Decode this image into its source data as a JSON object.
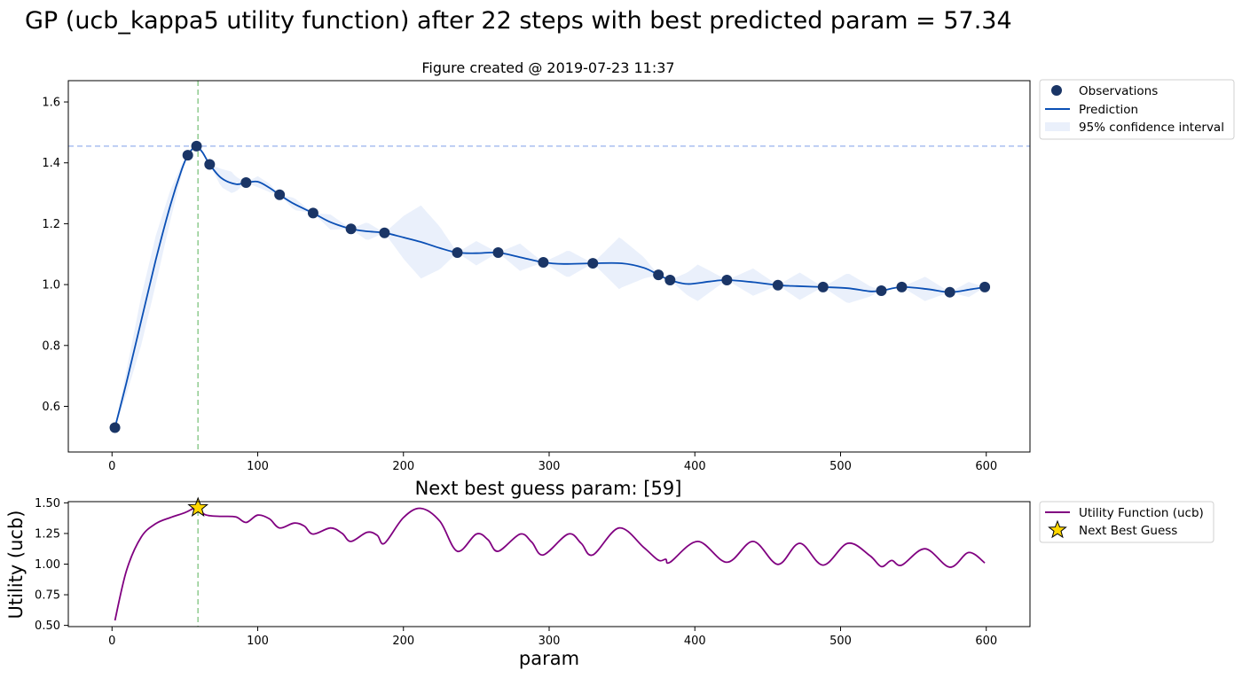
{
  "suptitle": "GP (ucb_kappa5 utility function) after 22 steps with best predicted param = 57.34",
  "top_title": "Figure created @ 2019-07-23 11:37",
  "bottom_title": "Next best guess param: [59]",
  "bottom_ylabel": "Utility (ucb)",
  "bottom_xlabel": "param",
  "legend_top": {
    "observations": "Observations",
    "prediction": "Prediction",
    "ci": "95% confidence interval"
  },
  "legend_bottom": {
    "utility": "Utility Function (ucb)",
    "guess": "Next Best Guess"
  },
  "colors": {
    "observation": "#1a3566",
    "prediction": "#0a4fb5",
    "ci": "#eaf0fb",
    "hline": "#a9bff0",
    "vline": "#8fcb8f",
    "utility": "#800080",
    "star": "#ffd700"
  },
  "chart_data": [
    {
      "type": "line",
      "title": "Figure created @ 2019-07-23 11:37",
      "xlim": [
        -30,
        630
      ],
      "ylim": [
        0.45,
        1.67
      ],
      "xticks": [
        0,
        100,
        200,
        300,
        400,
        500,
        600
      ],
      "yticks": [
        0.6,
        0.8,
        1.0,
        1.2,
        1.4,
        1.6
      ],
      "ytick_labels": [
        "0.6",
        "0.8",
        "1.0",
        "1.2",
        "1.4",
        "1.6"
      ],
      "best_y_hline": 1.455,
      "best_x_vline": 59,
      "observations": {
        "x": [
          2,
          52,
          58,
          67,
          92,
          115,
          138,
          164,
          187,
          237,
          265,
          296,
          330,
          375,
          383,
          422,
          457,
          488,
          528,
          542,
          575,
          599
        ],
        "y": [
          0.53,
          1.425,
          1.455,
          1.395,
          1.335,
          1.295,
          1.235,
          1.183,
          1.17,
          1.105,
          1.105,
          1.073,
          1.07,
          1.032,
          1.015,
          1.015,
          0.998,
          0.992,
          0.98,
          0.992,
          0.975,
          0.992
        ]
      },
      "prediction": {
        "x": [
          2,
          10,
          20,
          30,
          40,
          48,
          52,
          56,
          58,
          62,
          67,
          75,
          85,
          92,
          100,
          108,
          115,
          125,
          138,
          150,
          164,
          175,
          187,
          200,
          212,
          225,
          237,
          250,
          265,
          280,
          296,
          310,
          330,
          350,
          365,
          375,
          383,
          395,
          410,
          422,
          440,
          457,
          470,
          488,
          505,
          520,
          528,
          542,
          560,
          575,
          590,
          599
        ],
        "y": [
          0.53,
          0.68,
          0.88,
          1.08,
          1.26,
          1.38,
          1.425,
          1.45,
          1.455,
          1.435,
          1.395,
          1.35,
          1.33,
          1.335,
          1.338,
          1.318,
          1.295,
          1.265,
          1.235,
          1.205,
          1.183,
          1.175,
          1.17,
          1.155,
          1.14,
          1.12,
          1.105,
          1.103,
          1.105,
          1.09,
          1.073,
          1.068,
          1.07,
          1.07,
          1.055,
          1.032,
          1.015,
          1.002,
          1.01,
          1.015,
          1.008,
          0.998,
          0.995,
          0.992,
          0.988,
          0.978,
          0.98,
          0.992,
          0.985,
          0.975,
          0.985,
          0.992
        ]
      },
      "ci_halfwidth": {
        "x": [
          2,
          10,
          20,
          30,
          40,
          48,
          52,
          58,
          67,
          75,
          82,
          92,
          100,
          108,
          115,
          125,
          138,
          150,
          164,
          175,
          187,
          200,
          212,
          225,
          237,
          250,
          265,
          280,
          296,
          313,
          330,
          348,
          365,
          375,
          383,
          402,
          422,
          440,
          457,
          472,
          488,
          505,
          528,
          542,
          558,
          575,
          588,
          599
        ],
        "w": [
          0.0,
          0.04,
          0.08,
          0.08,
          0.05,
          0.015,
          0.0,
          0.0,
          0.0,
          0.03,
          0.035,
          0.0,
          0.018,
          0.014,
          0.0,
          0.02,
          0.0,
          0.025,
          0.0,
          0.03,
          0.0,
          0.07,
          0.12,
          0.07,
          0.0,
          0.04,
          0.0,
          0.045,
          0.0,
          0.045,
          0.0,
          0.085,
          0.035,
          0.0,
          0.0,
          0.06,
          0.0,
          0.045,
          0.0,
          0.045,
          0.0,
          0.05,
          0.0,
          0.0,
          0.04,
          0.0,
          0.025,
          0.0
        ]
      }
    },
    {
      "type": "line",
      "title": "Next best guess param: [59]",
      "xlabel": "param",
      "ylabel": "Utility (ucb)",
      "xlim": [
        -30,
        630
      ],
      "ylim": [
        0.49,
        1.51
      ],
      "xticks": [
        0,
        100,
        200,
        300,
        400,
        500,
        600
      ],
      "yticks": [
        0.5,
        0.75,
        1.0,
        1.25,
        1.5
      ],
      "ytick_labels": [
        "0.50",
        "0.75",
        "1.00",
        "1.25",
        "1.50"
      ],
      "best_x_vline": 59,
      "next_best_guess": {
        "x": 59,
        "y": 1.46
      },
      "utility": {
        "x": [
          2,
          10,
          20,
          30,
          40,
          50,
          56,
          59,
          63,
          67,
          75,
          85,
          92,
          100,
          108,
          115,
          125,
          132,
          138,
          150,
          158,
          164,
          175,
          182,
          187,
          200,
          212,
          225,
          237,
          250,
          258,
          265,
          280,
          288,
          296,
          313,
          322,
          330,
          348,
          365,
          375,
          380,
          383,
          402,
          422,
          440,
          457,
          472,
          488,
          505,
          520,
          528,
          535,
          542,
          558,
          575,
          588,
          599
        ],
        "y": [
          0.54,
          0.95,
          1.22,
          1.33,
          1.38,
          1.42,
          1.455,
          1.46,
          1.41,
          1.395,
          1.39,
          1.385,
          1.34,
          1.4,
          1.37,
          1.295,
          1.335,
          1.31,
          1.245,
          1.295,
          1.25,
          1.185,
          1.26,
          1.235,
          1.17,
          1.38,
          1.455,
          1.35,
          1.105,
          1.245,
          1.2,
          1.105,
          1.245,
          1.18,
          1.075,
          1.245,
          1.17,
          1.075,
          1.295,
          1.135,
          1.032,
          1.04,
          1.015,
          1.185,
          1.015,
          1.185,
          0.998,
          1.17,
          0.992,
          1.17,
          1.07,
          0.98,
          1.03,
          0.992,
          1.125,
          0.975,
          1.095,
          1.01
        ]
      }
    }
  ]
}
